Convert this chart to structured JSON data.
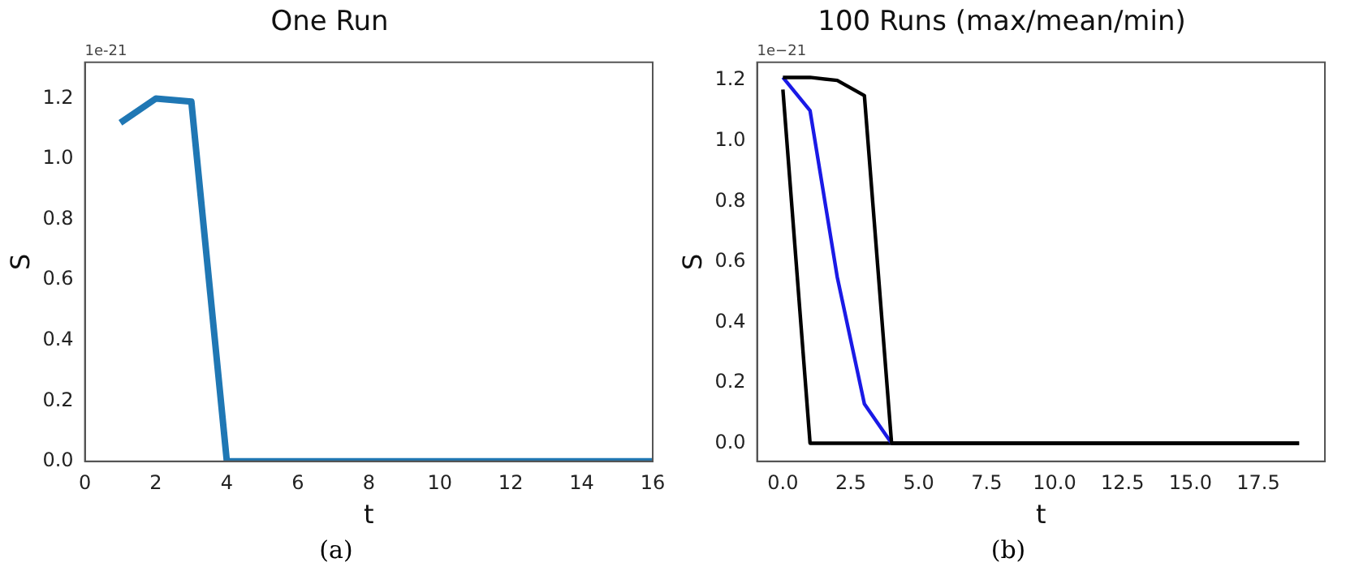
{
  "chart_data": [
    {
      "type": "line",
      "title": "One Run",
      "xlabel": "t",
      "ylabel": "S",
      "annotations": [
        "1e-21",
        "(a)"
      ],
      "x": [
        1,
        2,
        3,
        4,
        5,
        6,
        7,
        8,
        9,
        10,
        11,
        12,
        13,
        14,
        15,
        16
      ],
      "series": [
        {
          "color": "#1f77b4",
          "values": [
            1.12,
            1.2,
            1.19,
            0,
            0,
            0,
            0,
            0,
            0,
            0,
            0,
            0,
            0,
            0,
            0,
            0
          ]
        }
      ],
      "xlim": [
        0,
        16
      ],
      "xticks": [
        0,
        2,
        4,
        6,
        8,
        10,
        12,
        14,
        16
      ],
      "ylim": [
        0,
        1.32
      ],
      "yticks": [
        {
          "value": 0,
          "label": "0.0"
        },
        {
          "value": 0.2,
          "label": "0.2"
        },
        {
          "value": 0.4,
          "label": "0.4"
        },
        {
          "value": 0.6,
          "label": "0.6"
        },
        {
          "value": 0.8,
          "label": "0.8"
        },
        {
          "value": 1,
          "label": "1.0"
        },
        {
          "value": 1.2,
          "label": "1.2"
        }
      ],
      "grid": false,
      "legend": false,
      "marker": "none",
      "line_style": "solid"
    },
    {
      "type": "line",
      "title": "100 Runs (max/mean/min)",
      "xlabel": "t",
      "ylabel": "S",
      "annotations": [
        "1e−21",
        "(b)"
      ],
      "x": [
        0,
        1,
        2,
        3,
        4,
        5,
        6,
        7,
        8,
        9,
        10,
        11,
        12,
        13,
        14,
        15,
        16,
        17,
        18,
        19
      ],
      "series": [
        {
          "color": "#000000",
          "values": [
            1.21,
            1.21,
            1.2,
            1.15,
            0,
            0,
            0,
            0,
            0,
            0,
            0,
            0,
            0,
            0,
            0,
            0,
            0,
            0,
            0,
            0
          ]
        },
        {
          "color": "#1a1ae6",
          "values": [
            1.21,
            1.1,
            0.55,
            0.13,
            0,
            null,
            null,
            null,
            null,
            null,
            null,
            null,
            null,
            null,
            null,
            null,
            null,
            null,
            null,
            null
          ]
        },
        {
          "color": "#000000",
          "values": [
            1.17,
            0,
            0,
            0,
            0,
            0,
            0,
            0,
            0,
            0,
            0,
            0,
            0,
            0,
            0,
            0,
            0,
            0,
            0,
            0
          ]
        }
      ],
      "xlim": [
        -0.95,
        19.95
      ],
      "xticks": [
        {
          "value": 0,
          "label": "0.0"
        },
        {
          "value": 2.5,
          "label": "2.5"
        },
        {
          "value": 5,
          "label": "5.0"
        },
        {
          "value": 7.5,
          "label": "7.5"
        },
        {
          "value": 10,
          "label": "10.0"
        },
        {
          "value": 12.5,
          "label": "12.5"
        },
        {
          "value": 15,
          "label": "15.0"
        },
        {
          "value": 17.5,
          "label": "17.5"
        }
      ],
      "ylim": [
        -0.06,
        1.26
      ],
      "yticks": [
        {
          "value": 0,
          "label": "0.0"
        },
        {
          "value": 0.2,
          "label": "0.2"
        },
        {
          "value": 0.4,
          "label": "0.4"
        },
        {
          "value": 0.6,
          "label": "0.6"
        },
        {
          "value": 0.8,
          "label": "0.8"
        },
        {
          "value": 1,
          "label": "1.0"
        },
        {
          "value": 1.2,
          "label": "1.2"
        }
      ],
      "grid": false,
      "legend": false,
      "marker": "none",
      "line_style": "solid"
    }
  ]
}
